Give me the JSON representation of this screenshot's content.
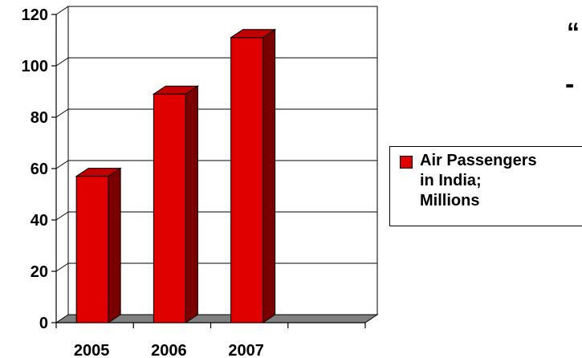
{
  "chart_data": {
    "type": "bar",
    "categories": [
      "2005",
      "2006",
      "2007"
    ],
    "series": [
      {
        "name": "Air Passengers in India; Millions",
        "values": [
          57,
          89,
          111
        ]
      }
    ],
    "yticks": [
      "0",
      "20",
      "40",
      "60",
      "80",
      "100",
      "120"
    ],
    "ylim": [
      0,
      120
    ],
    "xlabel": "",
    "ylabel": "",
    "title": "",
    "grid": true,
    "legend_position": "right",
    "style": "3d-column",
    "colors": {
      "bar_front": "#e00000",
      "bar_side": "#7a0000",
      "bar_top": "#c00000",
      "floor": "#808080"
    }
  },
  "legend": {
    "line1": "Air Passengers",
    "line2": "in India;",
    "line3": "Millions"
  },
  "decor": {
    "quote_glyph": "“",
    "dash_glyph": "-"
  }
}
